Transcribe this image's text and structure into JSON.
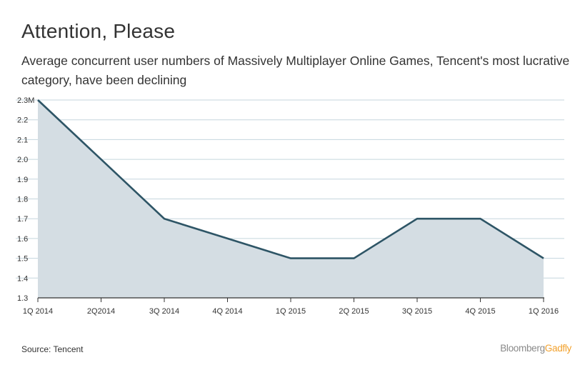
{
  "header": {
    "title": "Attention, Please",
    "subtitle": "Average concurrent user numbers of Massively Multiplayer Online Games, Tencent's most lucrative category, have been declining"
  },
  "footer": {
    "source": "Source: Tencent",
    "brand_part1": "Bloomberg",
    "brand_part2": "Gadfly"
  },
  "colors": {
    "line": "#2e5566",
    "area": "#d4dde3",
    "grid": "#c5d6de",
    "axis": "#333333",
    "brand_gray": "#8a8a8a",
    "brand_orange": "#f2a12d"
  },
  "chart_data": {
    "type": "area",
    "title": "Attention, Please",
    "subtitle": "Average concurrent user numbers of Massively Multiplayer Online Games, Tencent's most lucrative category, have been declining",
    "categories": [
      "1Q 2014",
      "2Q2014",
      "3Q 2014",
      "4Q 2014",
      "1Q 2015",
      "2Q 2015",
      "3Q 2015",
      "4Q 2015",
      "1Q 2016"
    ],
    "series": [
      {
        "name": "Average concurrent users (M)",
        "values": [
          2.3,
          2.0,
          1.7,
          1.6,
          1.5,
          1.5,
          1.7,
          1.7,
          1.5
        ]
      }
    ],
    "xlabel": "",
    "ylabel": "",
    "ylim": [
      1.3,
      2.3
    ],
    "yticks": [
      "1.3",
      "1.4",
      "1.5",
      "1.6",
      "1.7",
      "1.8",
      "1.9",
      "2.0",
      "2.1",
      "2.2",
      "2.3M"
    ],
    "grid": true,
    "legend": "none",
    "source": "Source: Tencent"
  }
}
